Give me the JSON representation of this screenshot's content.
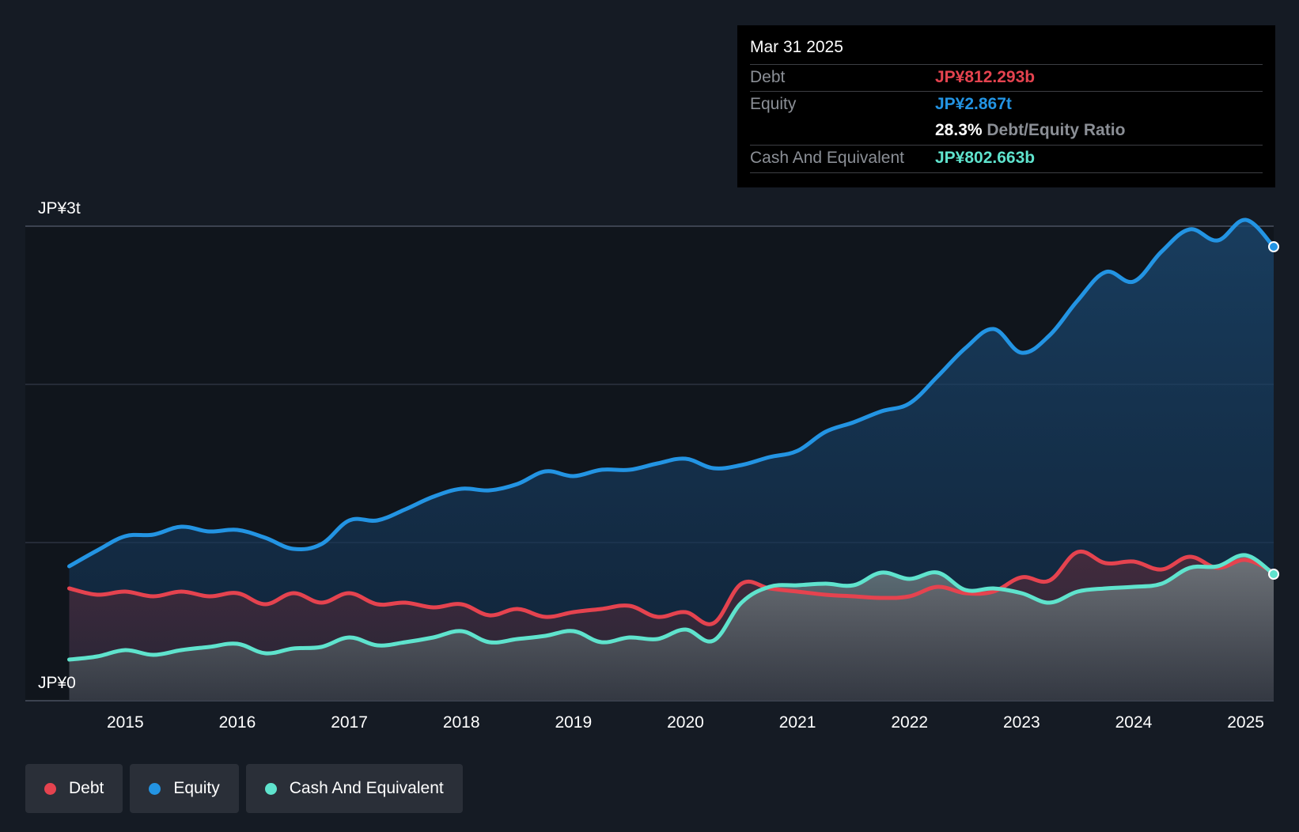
{
  "colors": {
    "debt": "#e5434f",
    "equity": "#2394e3",
    "cash": "#5fe3cd",
    "background": "#151b24",
    "grid": "#353c47"
  },
  "tooltip": {
    "date": "Mar 31 2025",
    "debt_label": "Debt",
    "debt_value": "JP¥812.293b",
    "equity_label": "Equity",
    "equity_value": "JP¥2.867t",
    "ratio_value": "28.3%",
    "ratio_label": "Debt/Equity Ratio",
    "cash_label": "Cash And Equivalent",
    "cash_value": "JP¥802.663b"
  },
  "legend": [
    {
      "label": "Debt",
      "color": "#e5434f"
    },
    {
      "label": "Equity",
      "color": "#2394e3"
    },
    {
      "label": "Cash And Equivalent",
      "color": "#5fe3cd"
    }
  ],
  "chart_data": {
    "type": "area",
    "title": "",
    "unit": "JP¥ trillions",
    "ylim": [
      0,
      3
    ],
    "y_tick_labels": [
      "JP¥0",
      "JP¥3t"
    ],
    "x_tick_labels": [
      "2015",
      "2016",
      "2017",
      "2018",
      "2019",
      "2020",
      "2021",
      "2022",
      "2023",
      "2024",
      "2025"
    ],
    "xlim": [
      2014.5,
      2025.25
    ],
    "x": [
      2014.5,
      2014.75,
      2015.0,
      2015.25,
      2015.5,
      2015.75,
      2016.0,
      2016.25,
      2016.5,
      2016.75,
      2017.0,
      2017.25,
      2017.5,
      2017.75,
      2018.0,
      2018.25,
      2018.5,
      2018.75,
      2019.0,
      2019.25,
      2019.5,
      2019.75,
      2020.0,
      2020.25,
      2020.5,
      2020.75,
      2021.0,
      2021.25,
      2021.5,
      2021.75,
      2022.0,
      2022.25,
      2022.5,
      2022.75,
      2023.0,
      2023.25,
      2023.5,
      2023.75,
      2024.0,
      2024.25,
      2024.5,
      2024.75,
      2025.0,
      2025.25
    ],
    "series": [
      {
        "name": "Debt",
        "values": [
          0.71,
          0.67,
          0.69,
          0.66,
          0.69,
          0.66,
          0.68,
          0.61,
          0.68,
          0.62,
          0.68,
          0.61,
          0.62,
          0.59,
          0.61,
          0.54,
          0.58,
          0.53,
          0.56,
          0.58,
          0.6,
          0.53,
          0.56,
          0.49,
          0.74,
          0.71,
          0.69,
          0.67,
          0.66,
          0.65,
          0.66,
          0.72,
          0.68,
          0.69,
          0.78,
          0.76,
          0.94,
          0.87,
          0.88,
          0.83,
          0.91,
          0.84,
          0.89,
          0.81
        ]
      },
      {
        "name": "Equity",
        "values": [
          0.85,
          0.95,
          1.04,
          1.05,
          1.1,
          1.07,
          1.08,
          1.03,
          0.96,
          0.99,
          1.14,
          1.14,
          1.21,
          1.29,
          1.34,
          1.33,
          1.37,
          1.45,
          1.42,
          1.46,
          1.46,
          1.5,
          1.53,
          1.47,
          1.49,
          1.54,
          1.58,
          1.7,
          1.76,
          1.83,
          1.88,
          2.05,
          2.23,
          2.35,
          2.2,
          2.31,
          2.53,
          2.71,
          2.65,
          2.84,
          2.98,
          2.91,
          3.04,
          2.87
        ]
      },
      {
        "name": "Cash And Equivalent",
        "values": [
          0.26,
          0.28,
          0.32,
          0.29,
          0.32,
          0.34,
          0.36,
          0.3,
          0.33,
          0.34,
          0.4,
          0.35,
          0.37,
          0.4,
          0.44,
          0.37,
          0.39,
          0.41,
          0.44,
          0.37,
          0.4,
          0.39,
          0.45,
          0.38,
          0.62,
          0.72,
          0.73,
          0.74,
          0.73,
          0.81,
          0.77,
          0.81,
          0.7,
          0.71,
          0.68,
          0.62,
          0.69,
          0.71,
          0.72,
          0.74,
          0.84,
          0.85,
          0.92,
          0.8
        ]
      }
    ]
  }
}
